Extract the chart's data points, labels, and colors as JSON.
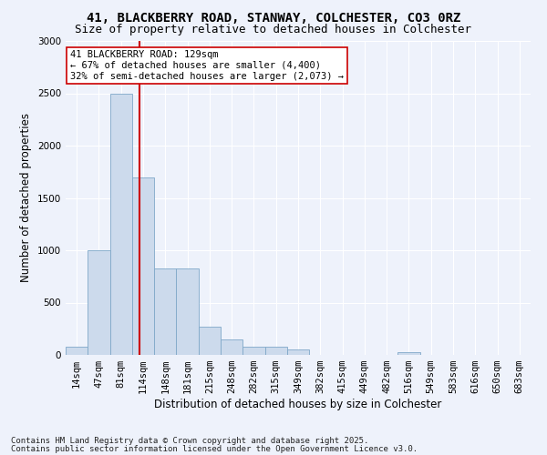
{
  "title_line1": "41, BLACKBERRY ROAD, STANWAY, COLCHESTER, CO3 0RZ",
  "title_line2": "Size of property relative to detached houses in Colchester",
  "xlabel": "Distribution of detached houses by size in Colchester",
  "ylabel": "Number of detached properties",
  "footer_line1": "Contains HM Land Registry data © Crown copyright and database right 2025.",
  "footer_line2": "Contains public sector information licensed under the Open Government Licence v3.0.",
  "categories": [
    "14sqm",
    "47sqm",
    "81sqm",
    "114sqm",
    "148sqm",
    "181sqm",
    "215sqm",
    "248sqm",
    "282sqm",
    "315sqm",
    "349sqm",
    "382sqm",
    "415sqm",
    "449sqm",
    "482sqm",
    "516sqm",
    "549sqm",
    "583sqm",
    "616sqm",
    "650sqm",
    "683sqm"
  ],
  "values": [
    75,
    1000,
    2500,
    1700,
    830,
    830,
    270,
    150,
    80,
    80,
    50,
    0,
    0,
    0,
    0,
    30,
    0,
    0,
    0,
    0,
    0
  ],
  "bar_color": "#ccdaec",
  "bar_edge_color": "#7fa8c8",
  "vline_position": 2.83,
  "vline_color": "#cc0000",
  "annotation_text": "41 BLACKBERRY ROAD: 129sqm\n← 67% of detached houses are smaller (4,400)\n32% of semi-detached houses are larger (2,073) →",
  "annotation_box_color": "#ffffff",
  "annotation_box_edge": "#cc0000",
  "ylim": [
    0,
    3000
  ],
  "yticks": [
    0,
    500,
    1000,
    1500,
    2000,
    2500,
    3000
  ],
  "background_color": "#eef2fb",
  "grid_color": "#ffffff",
  "title_fontsize": 10,
  "subtitle_fontsize": 9,
  "axis_label_fontsize": 8.5,
  "tick_fontsize": 7.5,
  "footer_fontsize": 6.5
}
